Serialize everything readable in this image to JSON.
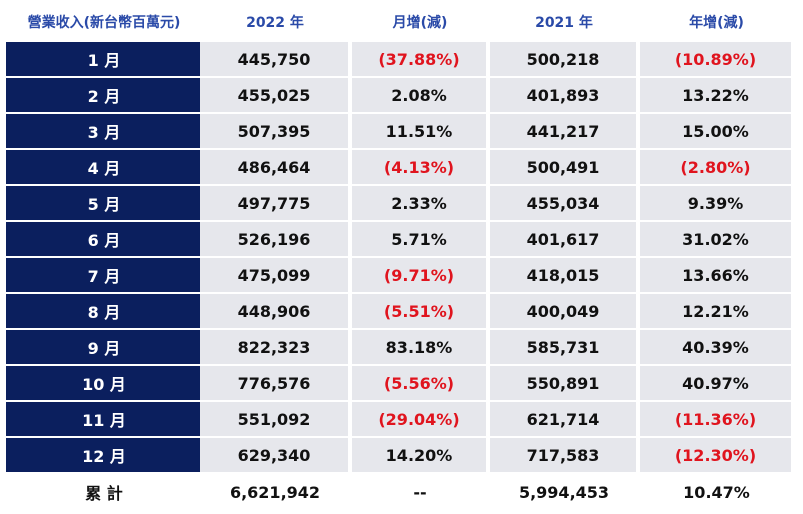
{
  "table": {
    "header": [
      "營業收入(新台幣百萬元)",
      "2022 年",
      "月增(減)",
      "2021 年",
      "年增(減)"
    ],
    "rows": [
      [
        "1 月",
        "445,750",
        "(37.88%)",
        "500,218",
        "(10.89%)"
      ],
      [
        "2 月",
        "455,025",
        "2.08%",
        "401,893",
        "13.22%"
      ],
      [
        "3 月",
        "507,395",
        "11.51%",
        "441,217",
        "15.00%"
      ],
      [
        "4 月",
        "486,464",
        "(4.13%)",
        "500,491",
        "(2.80%)"
      ],
      [
        "5 月",
        "497,775",
        "2.33%",
        "455,034",
        "9.39%"
      ],
      [
        "6 月",
        "526,196",
        "5.71%",
        "401,617",
        "31.02%"
      ],
      [
        "7 月",
        "475,099",
        "(9.71%)",
        "418,015",
        "13.66%"
      ],
      [
        "8 月",
        "448,906",
        "(5.51%)",
        "400,049",
        "12.21%"
      ],
      [
        "9 月",
        "822,323",
        "83.18%",
        "585,731",
        "40.39%"
      ],
      [
        "10 月",
        "776,576",
        "(5.56%)",
        "550,891",
        "40.97%"
      ],
      [
        "11 月",
        "551,092",
        "(29.04%)",
        "621,714",
        "(11.36%)"
      ],
      [
        "12 月",
        "629,340",
        "14.20%",
        "717,583",
        "(12.30%)"
      ]
    ],
    "total": [
      "累 計",
      "6,621,942",
      "--",
      "5,994,453",
      "10.47%"
    ]
  }
}
